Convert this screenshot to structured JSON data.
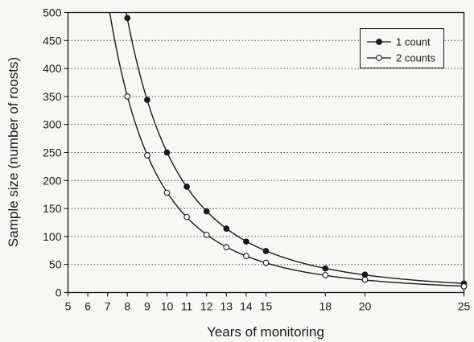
{
  "chart_data": {
    "type": "line",
    "title": "",
    "xlabel": "Years of monitoring",
    "ylabel": "Sample size (number of roosts)",
    "xlim": [
      5,
      25
    ],
    "ylim": [
      0,
      500
    ],
    "x_ticks": [
      5,
      6,
      7,
      8,
      9,
      10,
      11,
      12,
      13,
      14,
      15,
      18,
      20,
      25
    ],
    "y_ticks": [
      0,
      50,
      100,
      150,
      200,
      250,
      300,
      350,
      400,
      450,
      500
    ],
    "grid": "horizontal dotted",
    "legend_position": "top-right",
    "series": [
      {
        "name": "1 count",
        "marker": "filled-circle",
        "color": "#1a1a1a",
        "x": [
          8,
          9,
          10,
          11,
          12,
          13,
          14,
          15,
          18,
          20,
          25
        ],
        "y": [
          490,
          344,
          250,
          189,
          145,
          114,
          91,
          74,
          43,
          32,
          16
        ]
      },
      {
        "name": "2 counts",
        "marker": "open-circle",
        "color": "#1a1a1a",
        "x": [
          8,
          9,
          10,
          11,
          12,
          13,
          14,
          15,
          18,
          20,
          25
        ],
        "y": [
          350,
          245,
          178,
          135,
          103,
          81,
          65,
          53,
          31,
          23,
          11
        ]
      }
    ]
  }
}
